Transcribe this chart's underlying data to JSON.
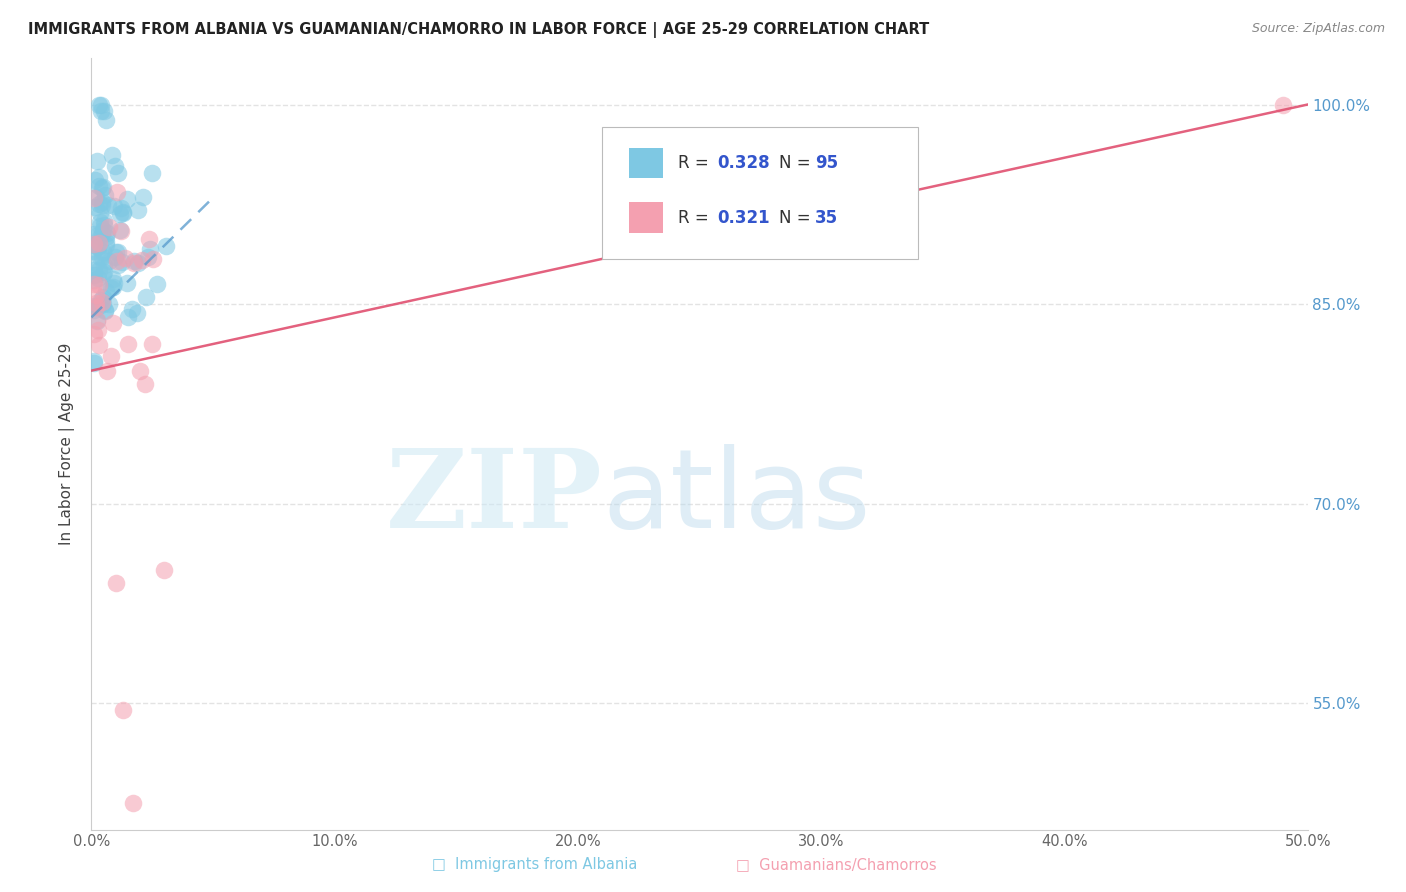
{
  "title": "IMMIGRANTS FROM ALBANIA VS GUAMANIAN/CHAMORRO IN LABOR FORCE | AGE 25-29 CORRELATION CHART",
  "source": "Source: ZipAtlas.com",
  "ylabel": "In Labor Force | Age 25-29",
  "yticks": [
    "100.0%",
    "85.0%",
    "70.0%",
    "55.0%"
  ],
  "ytick_vals": [
    1.0,
    0.85,
    0.7,
    0.55
  ],
  "xlim": [
    0.0,
    0.5
  ],
  "ylim": [
    0.455,
    1.035
  ],
  "albania_R": 0.328,
  "albania_N": 95,
  "guam_R": 0.321,
  "guam_N": 35,
  "albania_color": "#7ec8e3",
  "guam_color": "#f4a0b0",
  "albania_line_color": "#5599cc",
  "guam_line_color": "#e05070",
  "background_color": "#ffffff",
  "grid_color": "#dddddd",
  "title_color": "#222222",
  "source_color": "#888888",
  "ylabel_color": "#444444",
  "right_tick_color": "#5599cc",
  "legend_text_color": "#333333",
  "legend_RN_color": "#3355cc"
}
